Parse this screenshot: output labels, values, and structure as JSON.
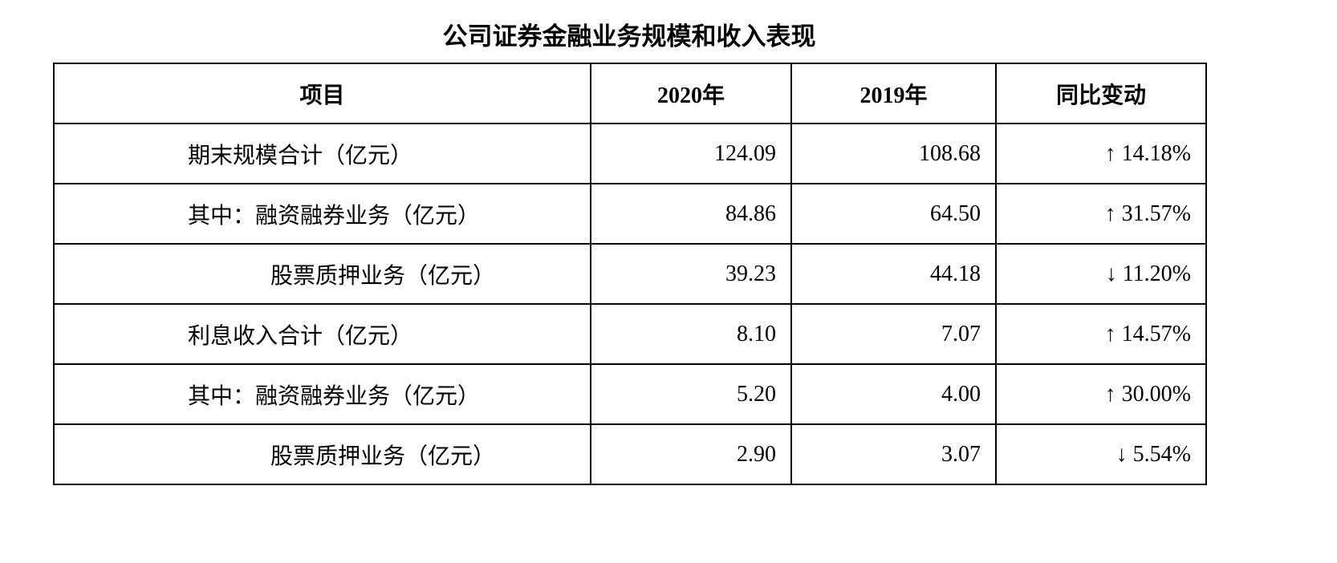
{
  "title": "公司证券金融业务规模和收入表现",
  "table": {
    "header": [
      "项目",
      "2020年",
      "2019年",
      "同比变动"
    ],
    "rows": [
      [
        "期末规模合计（亿元）",
        "124.09",
        "108.68",
        "↑ 14.18%"
      ],
      [
        "其中：融资融券业务（亿元）",
        "84.86",
        "64.50",
        "↑ 31.57%"
      ],
      [
        "股票质押业务（亿元）",
        "39.23",
        "44.18",
        "↓ 11.20%"
      ],
      [
        "利息收入合计（亿元）",
        "8.10",
        "7.07",
        "↑ 14.57%"
      ],
      [
        "其中：融资融券业务（亿元）",
        "5.20",
        "4.00",
        "↑ 30.00%"
      ],
      [
        "股票质押业务（亿元）",
        "2.90",
        "3.07",
        "↓ 5.54%"
      ]
    ]
  }
}
